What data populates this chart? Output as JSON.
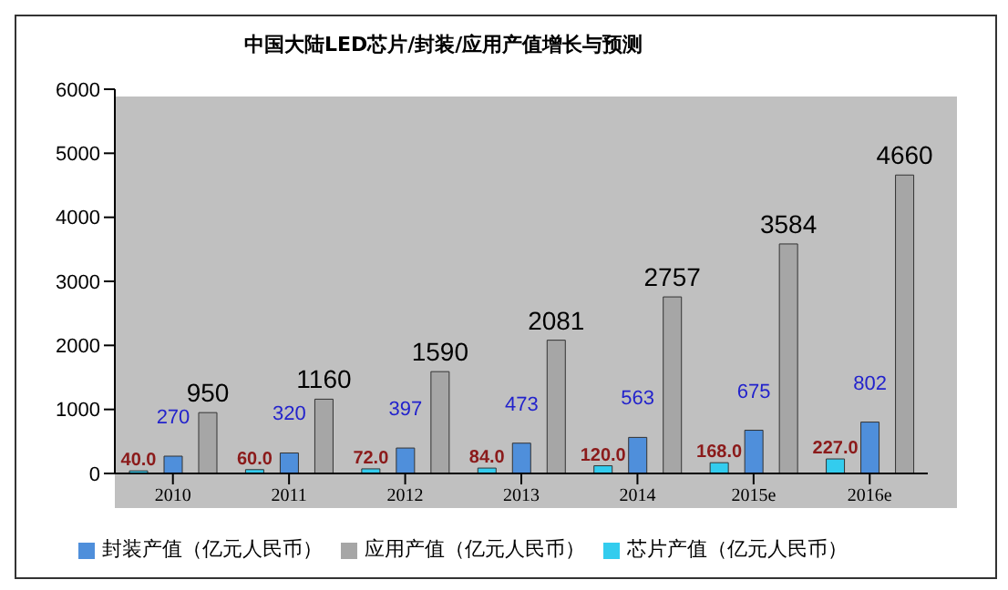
{
  "chart_data": {
    "type": "bar",
    "title": "中国大陆LED芯片/封装/应用产值增长与预测",
    "categories": [
      "2010",
      "2011",
      "2012",
      "2013",
      "2014",
      "2015e",
      "2016e"
    ],
    "series": [
      {
        "name": "芯片产值（亿元人民币）",
        "color": "#33ccee",
        "values": [
          40,
          60,
          72,
          84,
          120,
          168,
          227
        ],
        "value_labels": [
          "40.0",
          "60.0",
          "72.0",
          "84.0",
          "120.0",
          "168.0",
          "227.0"
        ]
      },
      {
        "name": "封装产值（亿元人民币）",
        "color": "#4f8fdb",
        "values": [
          270,
          320,
          397,
          473,
          563,
          675,
          802
        ],
        "value_labels": [
          "270",
          "320",
          "397",
          "473",
          "563",
          "675",
          "802"
        ]
      },
      {
        "name": "应用产值（亿元人民币）",
        "color": "#a6a6a6",
        "values": [
          950,
          1160,
          1590,
          2081,
          2757,
          3584,
          4660
        ],
        "value_labels": [
          "950",
          "1160",
          "1590",
          "2081",
          "2757",
          "3584",
          "4660"
        ]
      }
    ],
    "ylim": [
      0,
      6000
    ],
    "yticks": [
      0,
      1000,
      2000,
      3000,
      4000,
      5000,
      6000
    ],
    "grid": false,
    "legend": "bottom"
  }
}
